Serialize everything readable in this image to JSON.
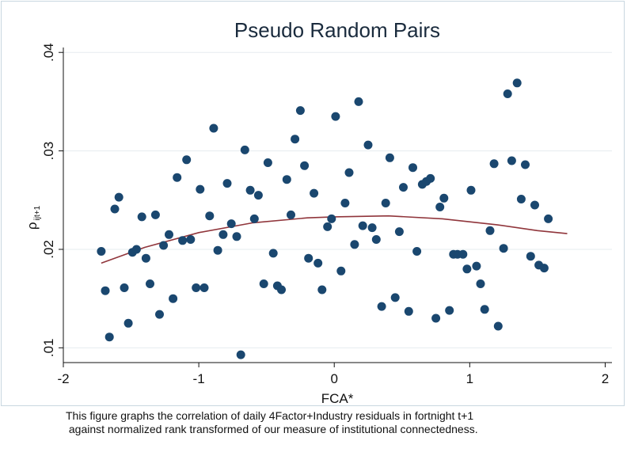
{
  "chart_data": {
    "type": "scatter",
    "title": "Pseudo Random Pairs",
    "xlabel": "FCA*",
    "ylabel_main": "ρ",
    "ylabel_sub": "ijt+1",
    "xlim": [
      -2.0,
      2.05
    ],
    "ylim": [
      0.0085,
      0.0405
    ],
    "xticks": [
      -2,
      -1,
      0,
      1,
      2
    ],
    "xtick_labels": [
      "-2",
      "-1",
      "0",
      "1",
      "2"
    ],
    "yticks": [
      0.01,
      0.02,
      0.03,
      0.04
    ],
    "ytick_labels": [
      ".01",
      ".02",
      ".03",
      ".04"
    ],
    "grid": true,
    "legend": "none",
    "point_color": "#1a476f",
    "fit_color": "#90353b",
    "points": [
      [
        -1.72,
        0.0198
      ],
      [
        -1.69,
        0.0158
      ],
      [
        -1.66,
        0.0111
      ],
      [
        -1.62,
        0.0241
      ],
      [
        -1.59,
        0.0253
      ],
      [
        -1.55,
        0.0161
      ],
      [
        -1.52,
        0.0125
      ],
      [
        -1.49,
        0.0197
      ],
      [
        -1.46,
        0.02
      ],
      [
        -1.42,
        0.0233
      ],
      [
        -1.39,
        0.0191
      ],
      [
        -1.36,
        0.0165
      ],
      [
        -1.32,
        0.0235
      ],
      [
        -1.29,
        0.0134
      ],
      [
        -1.26,
        0.0204
      ],
      [
        -1.22,
        0.0215
      ],
      [
        -1.19,
        0.015
      ],
      [
        -1.16,
        0.0273
      ],
      [
        -1.12,
        0.0209
      ],
      [
        -1.09,
        0.0291
      ],
      [
        -1.06,
        0.021
      ],
      [
        -1.02,
        0.0161
      ],
      [
        -0.99,
        0.0261
      ],
      [
        -0.96,
        0.0161
      ],
      [
        -0.92,
        0.0234
      ],
      [
        -0.89,
        0.0323
      ],
      [
        -0.86,
        0.0199
      ],
      [
        -0.82,
        0.0215
      ],
      [
        -0.79,
        0.0267
      ],
      [
        -0.76,
        0.0226
      ],
      [
        -0.72,
        0.0213
      ],
      [
        -0.69,
        0.0093
      ],
      [
        -0.66,
        0.0301
      ],
      [
        -0.62,
        0.026
      ],
      [
        -0.59,
        0.0231
      ],
      [
        -0.56,
        0.0255
      ],
      [
        -0.52,
        0.0165
      ],
      [
        -0.49,
        0.0288
      ],
      [
        -0.45,
        0.0196
      ],
      [
        -0.42,
        0.0163
      ],
      [
        -0.39,
        0.0159
      ],
      [
        -0.35,
        0.0271
      ],
      [
        -0.32,
        0.0235
      ],
      [
        -0.29,
        0.0312
      ],
      [
        -0.25,
        0.0341
      ],
      [
        -0.22,
        0.0285
      ],
      [
        -0.19,
        0.0191
      ],
      [
        -0.15,
        0.0257
      ],
      [
        -0.12,
        0.0186
      ],
      [
        -0.09,
        0.0159
      ],
      [
        -0.05,
        0.0223
      ],
      [
        -0.02,
        0.0231
      ],
      [
        0.01,
        0.0335
      ],
      [
        0.05,
        0.0178
      ],
      [
        0.08,
        0.0247
      ],
      [
        0.11,
        0.0278
      ],
      [
        0.15,
        0.0205
      ],
      [
        0.18,
        0.035
      ],
      [
        0.21,
        0.0224
      ],
      [
        0.25,
        0.0306
      ],
      [
        0.28,
        0.0222
      ],
      [
        0.31,
        0.021
      ],
      [
        0.35,
        0.0142
      ],
      [
        0.38,
        0.0247
      ],
      [
        0.41,
        0.0293
      ],
      [
        0.45,
        0.0151
      ],
      [
        0.48,
        0.0218
      ],
      [
        0.51,
        0.0263
      ],
      [
        0.55,
        0.0137
      ],
      [
        0.58,
        0.0283
      ],
      [
        0.61,
        0.0198
      ],
      [
        0.65,
        0.0266
      ],
      [
        0.68,
        0.0269
      ],
      [
        0.71,
        0.0272
      ],
      [
        0.75,
        0.013
      ],
      [
        0.78,
        0.0243
      ],
      [
        0.81,
        0.0252
      ],
      [
        0.85,
        0.0138
      ],
      [
        0.88,
        0.0195
      ],
      [
        0.91,
        0.0195
      ],
      [
        0.95,
        0.0195
      ],
      [
        0.98,
        0.018
      ],
      [
        1.01,
        0.026
      ],
      [
        1.05,
        0.0183
      ],
      [
        1.08,
        0.0165
      ],
      [
        1.11,
        0.0139
      ],
      [
        1.15,
        0.0219
      ],
      [
        1.18,
        0.0287
      ],
      [
        1.21,
        0.0122
      ],
      [
        1.25,
        0.0201
      ],
      [
        1.28,
        0.0358
      ],
      [
        1.31,
        0.029
      ],
      [
        1.35,
        0.0369
      ],
      [
        1.38,
        0.0251
      ],
      [
        1.41,
        0.0286
      ],
      [
        1.45,
        0.0193
      ],
      [
        1.48,
        0.0245
      ],
      [
        1.51,
        0.0184
      ],
      [
        1.55,
        0.0181
      ],
      [
        1.58,
        0.0231
      ]
    ],
    "fit": [
      [
        -1.72,
        0.0186
      ],
      [
        -1.4,
        0.0202
      ],
      [
        -1.0,
        0.0217
      ],
      [
        -0.6,
        0.0227
      ],
      [
        -0.2,
        0.0232
      ],
      [
        0.0,
        0.0233
      ],
      [
        0.4,
        0.0234
      ],
      [
        0.8,
        0.0231
      ],
      [
        1.2,
        0.0225
      ],
      [
        1.5,
        0.0219
      ],
      [
        1.72,
        0.0216
      ]
    ]
  },
  "caption": {
    "line1": "This figure graphs the correlation of daily 4Factor+Industry residuals in fortnight t+1",
    "line2": " against normalized rank transformed of our measure of institutional connectedness."
  }
}
